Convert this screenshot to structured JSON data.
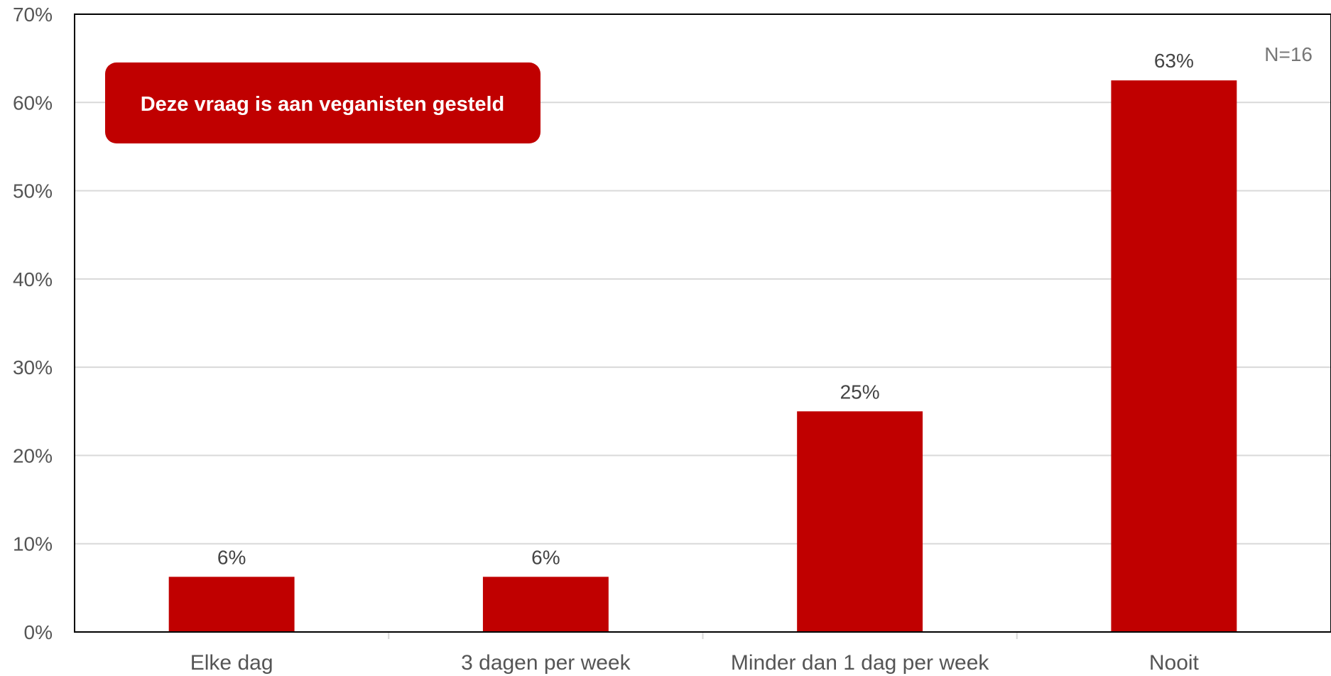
{
  "chart_data": {
    "type": "bar",
    "categories": [
      "Elke dag",
      "3 dagen per week",
      "Minder dan 1 dag per week",
      "Nooit"
    ],
    "values": [
      6.25,
      6.25,
      25,
      62.5
    ],
    "data_labels": [
      "6%",
      "6%",
      "25%",
      "63%"
    ],
    "ylim": [
      0,
      70
    ],
    "yticks": [
      0,
      10,
      20,
      30,
      40,
      50,
      60,
      70
    ],
    "ytick_labels": [
      "0%",
      "10%",
      "20%",
      "30%",
      "40%",
      "50%",
      "60%",
      "70%"
    ],
    "sample_size_label": "N=16",
    "annotation": "Deze vraag is aan veganisten gesteld",
    "grid": true,
    "colors": {
      "bar": "#c00000",
      "callout": "#c00000",
      "grid": "#d9d9d9",
      "axis": "#000000"
    }
  }
}
